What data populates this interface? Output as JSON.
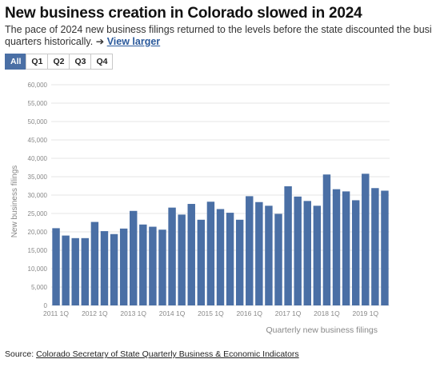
{
  "header": {
    "title": "New business creation in Colorado slowed in 2024",
    "subtitle_line1": "The pace of 2024 new business filings returned to the levels before the state discounted the busi",
    "subtitle_line2": "quarters historically.",
    "arrow": "➔",
    "link_label": "View larger"
  },
  "filter_tabs": [
    "All",
    "Q1",
    "Q2",
    "Q3",
    "Q4"
  ],
  "active_tab": "All",
  "source": {
    "prefix": "Source:",
    "link": "Colorado Secretary of State Quarterly Business & Economic Indicators"
  },
  "colors": {
    "bar": "#4a6fa5",
    "grid": "#e6e6e6",
    "axis_text": "#888888",
    "tab_active": "#4a6fa5"
  },
  "chart_data": {
    "type": "bar",
    "ylabel": "New business filings",
    "xlabel": "Quarterly new business filings",
    "ylim": [
      0,
      60000
    ],
    "yticks": [
      "0",
      "5,000",
      "10,000",
      "15,000",
      "20,000",
      "25,000",
      "30,000",
      "35,000",
      "40,000",
      "45,000",
      "50,000",
      "55,000",
      "60,000"
    ],
    "x_tick_labels": [
      "2011 1Q",
      "2012 1Q",
      "2013 1Q",
      "2014 1Q",
      "2015 1Q",
      "2016 1Q",
      "2017 1Q",
      "2018 1Q",
      "2019 1Q"
    ],
    "categories": [
      "2011 1Q",
      "2011 2Q",
      "2011 3Q",
      "2011 4Q",
      "2012 1Q",
      "2012 2Q",
      "2012 3Q",
      "2012 4Q",
      "2013 1Q",
      "2013 2Q",
      "2013 3Q",
      "2013 4Q",
      "2014 1Q",
      "2014 2Q",
      "2014 3Q",
      "2014 4Q",
      "2015 1Q",
      "2015 2Q",
      "2015 3Q",
      "2015 4Q",
      "2016 1Q",
      "2016 2Q",
      "2016 3Q",
      "2016 4Q",
      "2017 1Q",
      "2017 2Q",
      "2017 3Q",
      "2017 4Q",
      "2018 1Q",
      "2018 2Q",
      "2018 3Q",
      "2018 4Q",
      "2019 1Q",
      "2019 2Q",
      "2019 3Q"
    ],
    "values": [
      21000,
      19000,
      18300,
      18300,
      22700,
      20200,
      19400,
      20900,
      25700,
      22000,
      21400,
      20600,
      26600,
      24700,
      27600,
      23300,
      28200,
      26200,
      25200,
      23300,
      29700,
      28100,
      27100,
      24900,
      32400,
      29600,
      28400,
      27100,
      35600,
      31600,
      31000,
      28600,
      35800,
      31900,
      31200
    ],
    "grid": true
  }
}
